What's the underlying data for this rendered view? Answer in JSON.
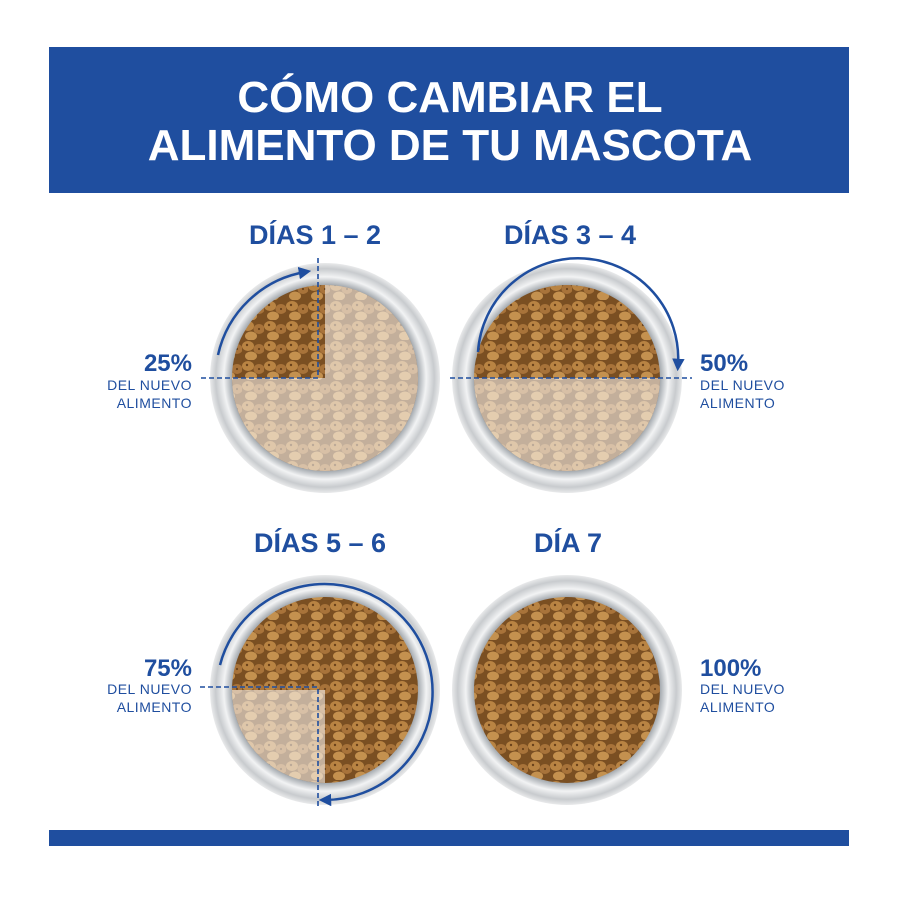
{
  "header": {
    "title_lines": [
      "CÓMO CAMBIAR EL",
      "ALIMENTO DE TU MASCOTA"
    ]
  },
  "panels": [
    {
      "day": "DÍAS 1 – 2",
      "percent": "25%",
      "caption_lines": [
        "DEL NUEVO",
        "ALIMENTO"
      ]
    },
    {
      "day": "DÍAS 3 – 4",
      "percent": "50%",
      "caption_lines": [
        "DEL NUEVO",
        "ALIMENTO"
      ]
    },
    {
      "day": "DÍAS 5 – 6",
      "percent": "75%",
      "caption_lines": [
        "DEL NUEVO",
        "ALIMENTO"
      ]
    },
    {
      "day": "DÍA 7",
      "percent": "100%",
      "caption_lines": [
        "DEL NUEVO",
        "ALIMENTO"
      ]
    }
  ]
}
